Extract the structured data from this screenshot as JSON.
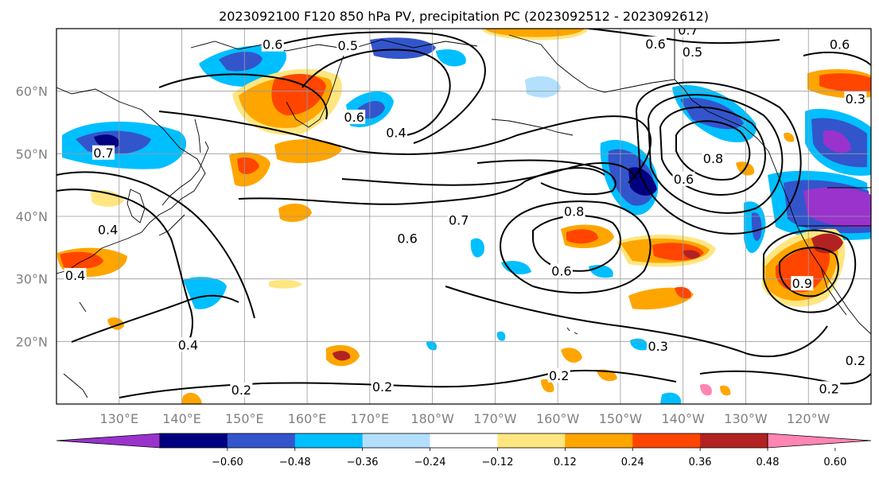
{
  "title": "2023092100 F120 850 hPa PV, precipitation PC (2023092512 - 2023092612)",
  "map": {
    "lon_range": [
      120,
      250
    ],
    "lat_range": [
      10,
      70
    ],
    "lat_ticks": [
      {
        "lat": 60,
        "label": "60°N"
      },
      {
        "lat": 50,
        "label": "50°N"
      },
      {
        "lat": 40,
        "label": "40°N"
      },
      {
        "lat": 30,
        "label": "30°N"
      },
      {
        "lat": 20,
        "label": "20°N"
      }
    ],
    "lon_ticks": [
      {
        "lon": 130,
        "label": "130°E"
      },
      {
        "lon": 140,
        "label": "140°E"
      },
      {
        "lon": 150,
        "label": "150°E"
      },
      {
        "lon": 160,
        "label": "160°E"
      },
      {
        "lon": 170,
        "label": "170°E"
      },
      {
        "lon": 180,
        "label": "180°W"
      },
      {
        "lon": 190,
        "label": "170°W"
      },
      {
        "lon": 200,
        "label": "160°W"
      },
      {
        "lon": 210,
        "label": "150°W"
      },
      {
        "lon": 220,
        "label": "140°W"
      },
      {
        "lon": 230,
        "label": "130°W"
      },
      {
        "lon": 240,
        "label": "120°W"
      }
    ],
    "contour_labels": [
      {
        "text": "0.6",
        "lon": 154.5,
        "lat": 67.5
      },
      {
        "text": "0.5",
        "lon": 166.5,
        "lat": 67.3
      },
      {
        "text": "0.7",
        "lon": 220.8,
        "lat": 69.8
      },
      {
        "text": "0.6",
        "lon": 215.6,
        "lat": 67.6
      },
      {
        "text": "0.5",
        "lon": 221.5,
        "lat": 66.3
      },
      {
        "text": "0.6",
        "lon": 167.5,
        "lat": 55.9
      },
      {
        "text": "0.4",
        "lon": 174.2,
        "lat": 53.4
      },
      {
        "text": "0.7",
        "lon": 127.5,
        "lat": 50.2
      },
      {
        "text": "0.4",
        "lon": 128.2,
        "lat": 37.9
      },
      {
        "text": "0.4",
        "lon": 123,
        "lat": 30.6
      },
      {
        "text": "0.7",
        "lon": 184.2,
        "lat": 39.4
      },
      {
        "text": "0.6",
        "lon": 176,
        "lat": 36.5
      },
      {
        "text": "0.8",
        "lon": 202.6,
        "lat": 40.8
      },
      {
        "text": "0.6",
        "lon": 200.6,
        "lat": 31.3
      },
      {
        "text": "0.8",
        "lon": 224.8,
        "lat": 49.3
      },
      {
        "text": "0.6",
        "lon": 220.1,
        "lat": 46
      },
      {
        "text": "0.3",
        "lon": 247.5,
        "lat": 58.8
      },
      {
        "text": "0.6",
        "lon": 245,
        "lat": 67.5
      },
      {
        "text": "0.9",
        "lon": 239,
        "lat": 29.3
      },
      {
        "text": "0.4",
        "lon": 141,
        "lat": 19.5
      },
      {
        "text": "0.2",
        "lon": 149.5,
        "lat": 12.3
      },
      {
        "text": "0.2",
        "lon": 172,
        "lat": 12.8
      },
      {
        "text": "0.2",
        "lon": 200.2,
        "lat": 14.6
      },
      {
        "text": "0.3",
        "lon": 216,
        "lat": 19.3
      },
      {
        "text": "0.2",
        "lon": 247.5,
        "lat": 17
      },
      {
        "text": "0.2",
        "lon": 243.3,
        "lat": 12.5
      }
    ]
  },
  "colorbar": {
    "ticks": [
      "−0.60",
      "−0.48",
      "−0.36",
      "−0.24",
      "−0.12",
      "0.12",
      "0.24",
      "0.36",
      "0.48",
      "0.60"
    ],
    "colors": [
      "#9933cc",
      "#000080",
      "#3355cc",
      "#00bfff",
      "#b3e0ff",
      "#ffffff",
      "#ffe680",
      "#ffa500",
      "#ff4500",
      "#b22222",
      "#ff85b3"
    ]
  }
}
